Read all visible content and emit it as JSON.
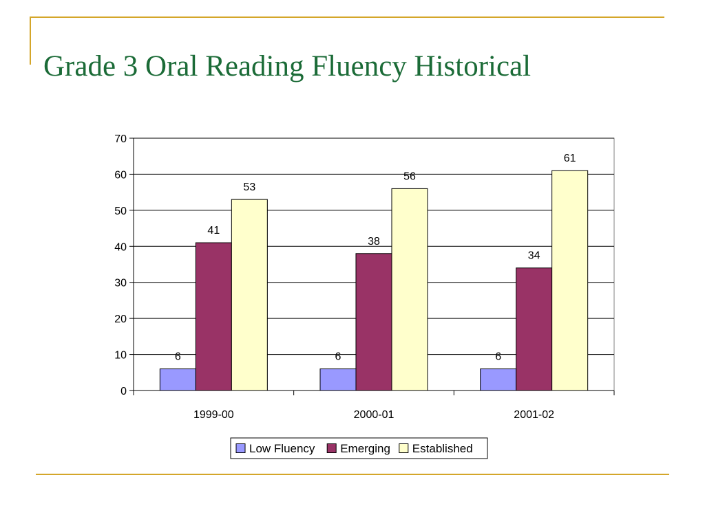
{
  "slide": {
    "title": "Grade 3 Oral Reading Fluency Historical"
  },
  "colors": {
    "accent_rule": "#d4a62a",
    "title_text": "#1b6b37",
    "gridline": "#000000"
  },
  "chart_data": {
    "type": "bar",
    "title": "",
    "xlabel": "",
    "ylabel": "",
    "categories": [
      "1999-00",
      "2000-01",
      "2001-02"
    ],
    "series": [
      {
        "name": "Low Fluency",
        "values": [
          6,
          6,
          6
        ],
        "color": "#9999ff"
      },
      {
        "name": "Emerging",
        "values": [
          41,
          38,
          34
        ],
        "color": "#993366"
      },
      {
        "name": "Established",
        "values": [
          53,
          56,
          61
        ],
        "color": "#ffffcc"
      }
    ],
    "ylim": [
      0,
      70
    ],
    "yticks": [
      0,
      10,
      20,
      30,
      40,
      50,
      60,
      70
    ],
    "grid": true,
    "data_labels": true,
    "legend_position": "bottom"
  }
}
